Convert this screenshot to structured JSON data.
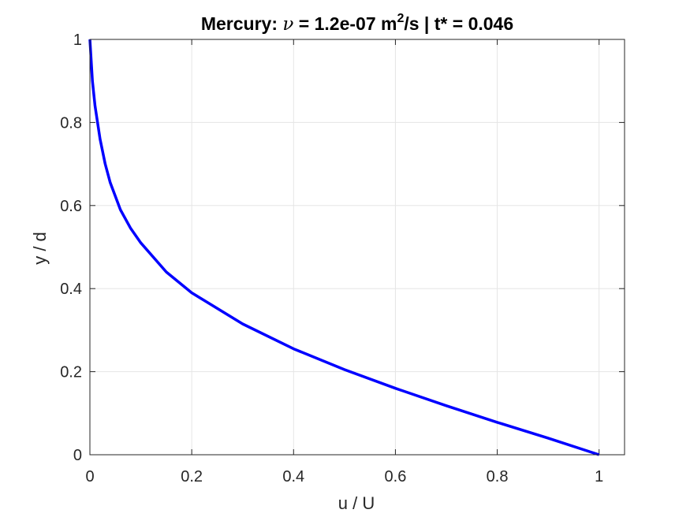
{
  "chart_data": {
    "type": "line",
    "title": {
      "prefix": "Mercury: ",
      "nu_symbol": "ν",
      "middle": " = 1.2e-07 m",
      "superscript": "2",
      "suffix": "/s | t* = 0.046"
    },
    "xlabel": "u / U",
    "ylabel": "y / d",
    "xlim": [
      0,
      1.05
    ],
    "ylim": [
      0,
      1
    ],
    "xticks": [
      0,
      0.2,
      0.4,
      0.6,
      0.8,
      1
    ],
    "xtick_labels": [
      "0",
      "0.2",
      "0.4",
      "0.6",
      "0.8",
      "1"
    ],
    "yticks": [
      0,
      0.2,
      0.4,
      0.6,
      0.8,
      1
    ],
    "ytick_labels": [
      "0",
      "0.2",
      "0.4",
      "0.6",
      "0.8",
      "1"
    ],
    "grid": true,
    "series": [
      {
        "color": "#0000ff",
        "x": [
          1.0,
          0.9,
          0.8,
          0.7,
          0.6,
          0.5,
          0.4,
          0.3,
          0.2,
          0.15,
          0.1,
          0.08,
          0.06,
          0.04,
          0.03,
          0.02,
          0.01,
          0.005,
          0.0
        ],
        "y": [
          0.0,
          0.04,
          0.078,
          0.118,
          0.16,
          0.205,
          0.255,
          0.315,
          0.39,
          0.44,
          0.51,
          0.545,
          0.59,
          0.655,
          0.7,
          0.76,
          0.84,
          0.9,
          1.0
        ]
      }
    ]
  }
}
